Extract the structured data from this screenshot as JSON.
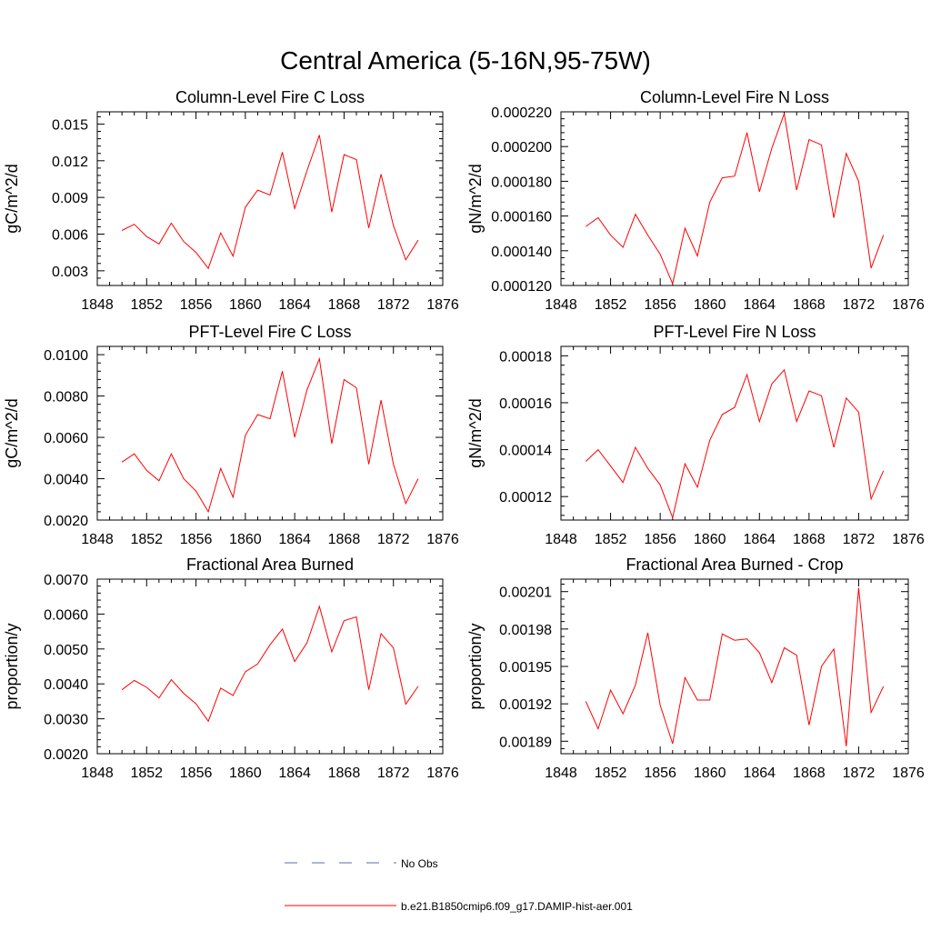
{
  "figure_title": "Central America (5-16N,95-75W)",
  "legend": {
    "obs_label": "No Obs",
    "obs_color": "#5b6ea6",
    "model_label": "b.e21.B1850cmip6.f09_g17.DAMIP-hist-aer.001",
    "model_color": "#ff0000"
  },
  "chart_data": [
    {
      "type": "line",
      "title": "Column-Level Fire C Loss",
      "ylabel": "gC/m^2/d",
      "xlabel": "",
      "xlim": [
        1848,
        1876
      ],
      "xticks": [
        1848,
        1852,
        1856,
        1860,
        1864,
        1868,
        1872,
        1876
      ],
      "ylim": [
        0.0018,
        0.016
      ],
      "yticks": [
        "0.003",
        "0.006",
        "0.009",
        "0.012",
        "0.015"
      ],
      "series": [
        {
          "x": [
            1850,
            1851,
            1852,
            1853,
            1854,
            1855,
            1856,
            1857,
            1858,
            1859,
            1860,
            1861,
            1862,
            1863,
            1864,
            1865,
            1866,
            1867,
            1868,
            1869,
            1870,
            1871,
            1872,
            1873,
            1874
          ],
          "values": [
            0.0063,
            0.0068,
            0.0058,
            0.0052,
            0.0069,
            0.0054,
            0.0045,
            0.0032,
            0.0061,
            0.0042,
            0.0082,
            0.0096,
            0.0092,
            0.0127,
            0.0081,
            0.0112,
            0.0141,
            0.0078,
            0.0125,
            0.0121,
            0.0065,
            0.0109,
            0.0067,
            0.0039,
            0.0055
          ]
        }
      ]
    },
    {
      "type": "line",
      "title": "Column-Level Fire N Loss",
      "ylabel": "gN/m^2/d",
      "xlabel": "",
      "xlim": [
        1848,
        1876
      ],
      "xticks": [
        1848,
        1852,
        1856,
        1860,
        1864,
        1868,
        1872,
        1876
      ],
      "ylim": [
        0.00012,
        0.00022
      ],
      "yticks": [
        "0.000120",
        "0.000140",
        "0.000160",
        "0.000180",
        "0.000200",
        "0.000220"
      ],
      "series": [
        {
          "x": [
            1850,
            1851,
            1852,
            1853,
            1854,
            1855,
            1856,
            1857,
            1858,
            1859,
            1860,
            1861,
            1862,
            1863,
            1864,
            1865,
            1866,
            1867,
            1868,
            1869,
            1870,
            1871,
            1872,
            1873,
            1874
          ],
          "values": [
            0.000154,
            0.000159,
            0.000149,
            0.000142,
            0.000161,
            0.000149,
            0.000138,
            0.000121,
            0.000153,
            0.000137,
            0.000168,
            0.000182,
            0.000183,
            0.000208,
            0.000174,
            0.000199,
            0.000219,
            0.000175,
            0.000204,
            0.000201,
            0.000159,
            0.000196,
            0.00018,
            0.00013,
            0.000149
          ]
        }
      ]
    },
    {
      "type": "line",
      "title": "PFT-Level Fire C Loss",
      "ylabel": "gC/m^2/d",
      "xlabel": "",
      "xlim": [
        1848,
        1876
      ],
      "xticks": [
        1848,
        1852,
        1856,
        1860,
        1864,
        1868,
        1872,
        1876
      ],
      "ylim": [
        0.002,
        0.0104
      ],
      "yticks": [
        "0.0020",
        "0.0040",
        "0.0060",
        "0.0080",
        "0.0100"
      ],
      "series": [
        {
          "x": [
            1850,
            1851,
            1852,
            1853,
            1854,
            1855,
            1856,
            1857,
            1858,
            1859,
            1860,
            1861,
            1862,
            1863,
            1864,
            1865,
            1866,
            1867,
            1868,
            1869,
            1870,
            1871,
            1872,
            1873,
            1874
          ],
          "values": [
            0.0048,
            0.0052,
            0.0044,
            0.0039,
            0.0052,
            0.004,
            0.0034,
            0.0024,
            0.0045,
            0.0031,
            0.0061,
            0.0071,
            0.0069,
            0.0092,
            0.006,
            0.0083,
            0.0098,
            0.0057,
            0.0088,
            0.0084,
            0.0047,
            0.0078,
            0.0047,
            0.0028,
            0.004
          ]
        }
      ]
    },
    {
      "type": "line",
      "title": "PFT-Level Fire N Loss",
      "ylabel": "gN/m^2/d",
      "xlabel": "",
      "xlim": [
        1848,
        1876
      ],
      "xticks": [
        1848,
        1852,
        1856,
        1860,
        1864,
        1868,
        1872,
        1876
      ],
      "ylim": [
        0.00011,
        0.000184
      ],
      "yticks": [
        "0.00012",
        "0.00014",
        "0.00016",
        "0.00018"
      ],
      "series": [
        {
          "x": [
            1850,
            1851,
            1852,
            1853,
            1854,
            1855,
            1856,
            1857,
            1858,
            1859,
            1860,
            1861,
            1862,
            1863,
            1864,
            1865,
            1866,
            1867,
            1868,
            1869,
            1870,
            1871,
            1872,
            1873,
            1874
          ],
          "values": [
            0.000135,
            0.00014,
            0.000133,
            0.000126,
            0.000141,
            0.000132,
            0.000125,
            0.000111,
            0.000134,
            0.000124,
            0.000144,
            0.000155,
            0.000158,
            0.000172,
            0.000152,
            0.000168,
            0.000174,
            0.000152,
            0.000165,
            0.000163,
            0.000141,
            0.000162,
            0.000156,
            0.000119,
            0.000131
          ]
        }
      ]
    },
    {
      "type": "line",
      "title": "Fractional Area Burned",
      "ylabel": "proportion/y",
      "xlabel": "",
      "xlim": [
        1848,
        1876
      ],
      "xticks": [
        1848,
        1852,
        1856,
        1860,
        1864,
        1868,
        1872,
        1876
      ],
      "ylim": [
        0.002,
        0.007
      ],
      "yticks": [
        "0.0020",
        "0.0030",
        "0.0040",
        "0.0050",
        "0.0060",
        "0.0070"
      ],
      "series": [
        {
          "x": [
            1850,
            1851,
            1852,
            1853,
            1854,
            1855,
            1856,
            1857,
            1858,
            1859,
            1860,
            1861,
            1862,
            1863,
            1864,
            1865,
            1866,
            1867,
            1868,
            1869,
            1870,
            1871,
            1872,
            1873,
            1874
          ],
          "values": [
            0.00383,
            0.0041,
            0.0039,
            0.0036,
            0.00412,
            0.00373,
            0.00343,
            0.00293,
            0.00388,
            0.00367,
            0.00435,
            0.00457,
            0.00512,
            0.00557,
            0.00464,
            0.00518,
            0.00622,
            0.00492,
            0.00581,
            0.00592,
            0.00383,
            0.00544,
            0.00503,
            0.00342,
            0.00393
          ]
        }
      ]
    },
    {
      "type": "line",
      "title": "Fractional Area Burned - Crop",
      "ylabel": "proportion/y",
      "xlabel": "",
      "xlim": [
        1848,
        1876
      ],
      "xticks": [
        1848,
        1852,
        1856,
        1860,
        1864,
        1868,
        1872,
        1876
      ],
      "ylim": [
        0.00188,
        0.00202
      ],
      "yticks": [
        "0.00189",
        "0.00192",
        "0.00195",
        "0.00198",
        "0.00201"
      ],
      "series": [
        {
          "x": [
            1850,
            1851,
            1852,
            1853,
            1854,
            1855,
            1856,
            1857,
            1858,
            1859,
            1860,
            1861,
            1862,
            1863,
            1864,
            1865,
            1866,
            1867,
            1868,
            1869,
            1870,
            1871,
            1872,
            1873,
            1874
          ],
          "values": [
            0.001922,
            0.0019,
            0.001931,
            0.001912,
            0.001935,
            0.001977,
            0.001919,
            0.001888,
            0.001941,
            0.001923,
            0.001923,
            0.001976,
            0.001971,
            0.001972,
            0.001961,
            0.001937,
            0.001965,
            0.001959,
            0.001903,
            0.00195,
            0.001964,
            0.001886,
            0.002013,
            0.001913,
            0.001934
          ]
        }
      ]
    }
  ]
}
